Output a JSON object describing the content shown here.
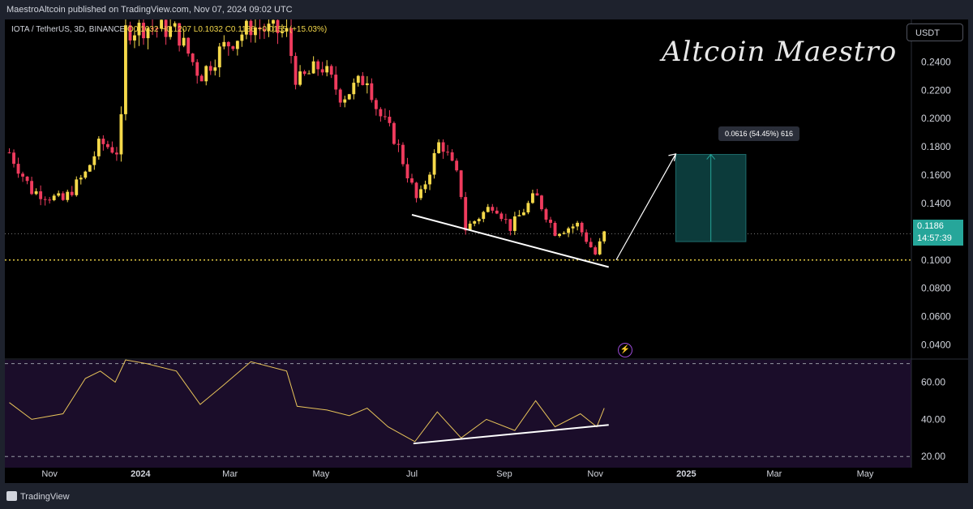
{
  "header": {
    "publisher": "MaestroAltcoin published on TradingView.com, Nov 07, 2024 09:02 UTC"
  },
  "legend": {
    "symbol": "IOTA / TetherUS, 3D, BINANCE",
    "open": "O0.1032",
    "high": "H0.1207",
    "low": "L0.1032",
    "close": "C0.1186",
    "change": "+0.0155 (+15.03%)"
  },
  "currency_button": "USDT",
  "watermark": "Altcoin Maestro",
  "current_price": {
    "value": "0.1186",
    "countdown": "14:57:39"
  },
  "measure_label": "0.0616 (54.45%) 616",
  "footer": {
    "brand": "TradingView"
  },
  "colors": {
    "up": "#f5d94a",
    "down": "#ef3b5d",
    "projection": "#0c3b3b",
    "rsi_bg": "#1b0d2a",
    "rsi_line": "#e8c45a"
  },
  "icons": {
    "bolt": "lightning-icon",
    "tv": "tradingview-logo-icon"
  },
  "chart_data": [
    {
      "type": "candlestick",
      "title": "IOTA / TetherUS, 3D, BINANCE",
      "ylim": [
        0.03,
        0.27
      ],
      "y_ticks": [
        "0.2400",
        "0.2200",
        "0.2000",
        "0.1800",
        "0.1600",
        "0.1400",
        "0.1000",
        "0.0800",
        "0.0600",
        "0.0400"
      ],
      "y_tick_values": [
        0.24,
        0.22,
        0.2,
        0.18,
        0.16,
        0.14,
        0.1,
        0.08,
        0.06,
        0.04
      ],
      "x_ticks": [
        "Nov",
        "2024",
        "Mar",
        "May",
        "Jul",
        "Sep",
        "Nov",
        "2025",
        "Mar",
        "May"
      ],
      "x_tick_dates": [
        "2023-11-01",
        "2024-01-01",
        "2024-03-01",
        "2024-05-01",
        "2024-07-01",
        "2024-09-01",
        "2024-11-01",
        "2025-01-01",
        "2025-03-01",
        "2025-05-01"
      ],
      "trend_points": [
        {
          "date": "2023-10-05",
          "price": 0.176
        },
        {
          "date": "2023-10-20",
          "price": 0.149
        },
        {
          "date": "2023-11-10",
          "price": 0.142
        },
        {
          "date": "2023-11-25",
          "price": 0.161
        },
        {
          "date": "2023-12-05",
          "price": 0.183
        },
        {
          "date": "2023-12-18",
          "price": 0.176
        },
        {
          "date": "2023-12-22",
          "price": 0.262
        },
        {
          "date": "2024-01-05",
          "price": 0.265
        },
        {
          "date": "2024-01-25",
          "price": 0.262
        },
        {
          "date": "2024-02-10",
          "price": 0.23
        },
        {
          "date": "2024-02-25",
          "price": 0.25
        },
        {
          "date": "2024-03-15",
          "price": 0.265
        },
        {
          "date": "2024-04-08",
          "price": 0.26
        },
        {
          "date": "2024-04-15",
          "price": 0.225
        },
        {
          "date": "2024-05-01",
          "price": 0.238
        },
        {
          "date": "2024-05-15",
          "price": 0.215
        },
        {
          "date": "2024-06-01",
          "price": 0.23
        },
        {
          "date": "2024-06-08",
          "price": 0.205
        },
        {
          "date": "2024-06-20",
          "price": 0.185
        },
        {
          "date": "2024-07-05",
          "price": 0.14
        },
        {
          "date": "2024-07-20",
          "price": 0.185
        },
        {
          "date": "2024-08-02",
          "price": 0.155
        },
        {
          "date": "2024-08-06",
          "price": 0.122
        },
        {
          "date": "2024-08-25",
          "price": 0.14
        },
        {
          "date": "2024-09-05",
          "price": 0.123
        },
        {
          "date": "2024-09-22",
          "price": 0.146
        },
        {
          "date": "2024-10-05",
          "price": 0.12
        },
        {
          "date": "2024-10-20",
          "price": 0.125
        },
        {
          "date": "2024-11-01",
          "price": 0.104
        },
        {
          "date": "2024-11-07",
          "price": 0.1186
        }
      ],
      "support_line": {
        "from": {
          "date": "2024-07-01",
          "price": 0.132
        },
        "to": {
          "date": "2024-11-10",
          "price": 0.095
        }
      },
      "horizontal_support": 0.1,
      "current_price_line": 0.1186,
      "projection": {
        "start": {
          "date": "2024-11-15",
          "price": 0.1
        },
        "end": {
          "date": "2024-12-25",
          "price": 0.175
        },
        "box_from": "2024-12-25",
        "box_to": "2025-02-10",
        "low": 0.113,
        "high": 0.1746
      }
    },
    {
      "type": "line",
      "title": "RSI",
      "ylim": [
        14,
        72
      ],
      "y_ticks": [
        "60.00",
        "40.00",
        "20.00"
      ],
      "y_tick_values": [
        60,
        40,
        20
      ],
      "band": [
        20,
        70
      ],
      "points": [
        {
          "date": "2023-10-05",
          "value": 49
        },
        {
          "date": "2023-10-20",
          "value": 40
        },
        {
          "date": "2023-11-10",
          "value": 43
        },
        {
          "date": "2023-11-25",
          "value": 62
        },
        {
          "date": "2023-12-05",
          "value": 66
        },
        {
          "date": "2023-12-15",
          "value": 60
        },
        {
          "date": "2023-12-22",
          "value": 72
        },
        {
          "date": "2024-01-05",
          "value": 70
        },
        {
          "date": "2024-01-25",
          "value": 66
        },
        {
          "date": "2024-02-10",
          "value": 48
        },
        {
          "date": "2024-02-25",
          "value": 58
        },
        {
          "date": "2024-03-15",
          "value": 71
        },
        {
          "date": "2024-04-08",
          "value": 66
        },
        {
          "date": "2024-04-15",
          "value": 47
        },
        {
          "date": "2024-05-05",
          "value": 45
        },
        {
          "date": "2024-05-20",
          "value": 42
        },
        {
          "date": "2024-06-01",
          "value": 46
        },
        {
          "date": "2024-06-15",
          "value": 36
        },
        {
          "date": "2024-07-03",
          "value": 28
        },
        {
          "date": "2024-07-18",
          "value": 44
        },
        {
          "date": "2024-08-03",
          "value": 30
        },
        {
          "date": "2024-08-20",
          "value": 40
        },
        {
          "date": "2024-09-08",
          "value": 34
        },
        {
          "date": "2024-09-22",
          "value": 50
        },
        {
          "date": "2024-10-05",
          "value": 36
        },
        {
          "date": "2024-10-22",
          "value": 43
        },
        {
          "date": "2024-11-02",
          "value": 36
        },
        {
          "date": "2024-11-07",
          "value": 46
        }
      ],
      "support_line": {
        "from": {
          "date": "2024-07-02",
          "value": 27
        },
        "to": {
          "date": "2024-11-10",
          "value": 37
        }
      }
    }
  ]
}
